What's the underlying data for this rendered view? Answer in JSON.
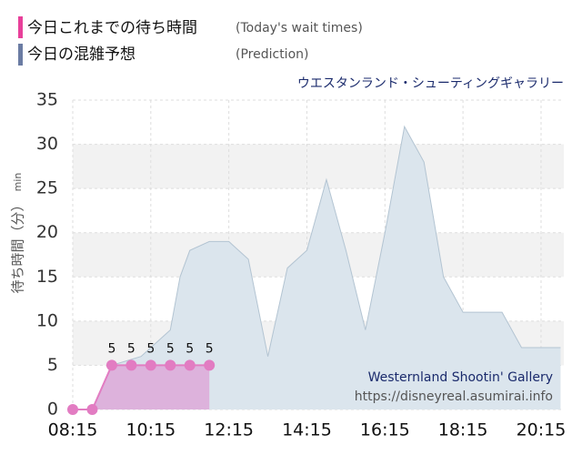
{
  "chart_data": {
    "type": "area",
    "legend": [
      {
        "label": "今日これまでの待ち時間",
        "note": "(Today's wait times)",
        "color": "#e8409a"
      },
      {
        "label": "今日の混雑予想",
        "note": "(Prediction)",
        "color": "#6b7ca3"
      }
    ],
    "subtitle": "ウエスタンランド・シューティングギャラリー",
    "y_label": "待ち時間（分）",
    "y_unit": "min",
    "watermark": [
      "Westernland Shootin' Gallery",
      "https://disneyreal.asumirai.info"
    ],
    "xlim": [
      495,
      1250
    ],
    "xticks": [
      {
        "value": 495,
        "label": "08:15"
      },
      {
        "value": 615,
        "label": "10:15"
      },
      {
        "value": 735,
        "label": "12:15"
      },
      {
        "value": 855,
        "label": "14:15"
      },
      {
        "value": 975,
        "label": "16:15"
      },
      {
        "value": 1095,
        "label": "18:15"
      },
      {
        "value": 1215,
        "label": "20:15"
      }
    ],
    "ylim": [
      0,
      35
    ],
    "yticks": [
      0,
      5,
      10,
      15,
      20,
      25,
      30,
      35
    ],
    "grid": true,
    "series": [
      {
        "name": "今日の混雑予想",
        "color": "#dbe5ed",
        "stroke": "#b3c4d2",
        "x": [
          525,
          555,
          600,
          615,
          645,
          660,
          675,
          705,
          720,
          735,
          765,
          795,
          825,
          855,
          885,
          915,
          945,
          975,
          1005,
          1035,
          1065,
          1095,
          1125,
          1155,
          1185,
          1245
        ],
        "values": [
          0,
          5,
          6,
          7,
          9,
          15,
          18,
          19,
          19,
          19,
          17,
          6,
          16,
          18,
          26,
          18,
          9,
          20,
          32,
          28,
          15,
          11,
          11,
          11,
          7,
          7
        ]
      },
      {
        "name": "今日これまでの待ち時間",
        "color": "#e27cc2",
        "fill": "#ddb2dc",
        "x": [
          495,
          525,
          555,
          585,
          615,
          645,
          675,
          705
        ],
        "values": [
          0,
          0,
          5,
          5,
          5,
          5,
          5,
          5
        ]
      }
    ]
  }
}
